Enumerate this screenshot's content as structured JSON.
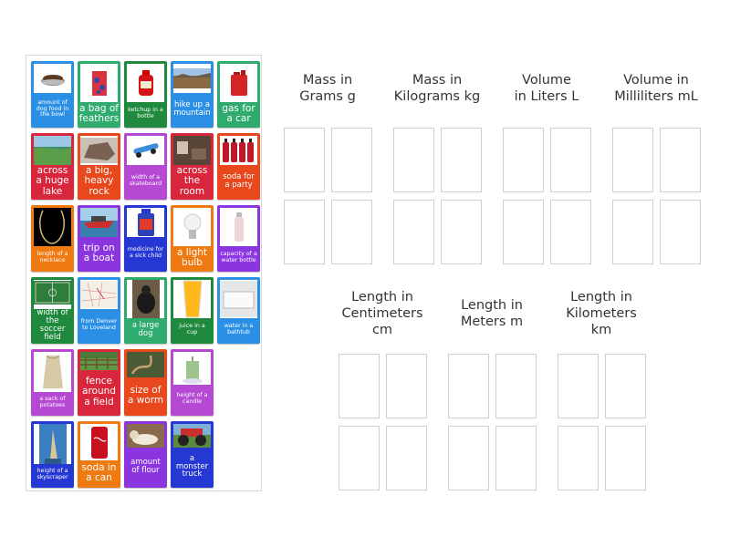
{
  "activity": {
    "type": "group-sort",
    "item_pool": [
      {
        "label": "amount of dog food in the bowl",
        "image": "dog-food-bowl",
        "color": "#2b8fe6"
      },
      {
        "label": "a bag of feathers",
        "image": "bag-of-feathers",
        "color": "#2fab6e"
      },
      {
        "label": "ketchup in a bottle",
        "image": "ketchup-bottle",
        "color": "#1f8a3e"
      },
      {
        "label": "hike up a mountain",
        "image": "mountain-landscape",
        "color": "#2b8fe6"
      },
      {
        "label": "gas for a car",
        "image": "gas-can",
        "color": "#2fab6e"
      },
      {
        "label": "across a huge lake",
        "image": "lake",
        "color": "#d9263c"
      },
      {
        "label": "a big, heavy rock",
        "image": "rock",
        "color": "#e8481c"
      },
      {
        "label": "width of a skateboard",
        "image": "skateboard",
        "color": "#b549d4"
      },
      {
        "label": "across the room",
        "image": "room",
        "color": "#d9263c"
      },
      {
        "label": "soda for a party",
        "image": "soda-bottles",
        "color": "#e8481c"
      },
      {
        "label": "length of a necklace",
        "image": "necklace",
        "color": "#f07a12"
      },
      {
        "label": "trip on a boat",
        "image": "boat",
        "color": "#8b35e0"
      },
      {
        "label": "medicine for a sick child",
        "image": "medicine-bottle",
        "color": "#2638d4"
      },
      {
        "label": "a light bulb",
        "image": "light-bulb",
        "color": "#f07a12"
      },
      {
        "label": "capacity of a water bottle",
        "image": "water-bottle",
        "color": "#8b35e0"
      },
      {
        "label": "width of the soccer field",
        "image": "soccer-field",
        "color": "#1f8a3e"
      },
      {
        "label": "from Denver to Loveland",
        "image": "map",
        "color": "#2b8fe6"
      },
      {
        "label": "a large dog",
        "image": "large-dog",
        "color": "#2fab6e"
      },
      {
        "label": "juice in a cup",
        "image": "juice-glass",
        "color": "#1f8a3e"
      },
      {
        "label": "water in a bathtub",
        "image": "bathtub",
        "color": "#2b8fe6"
      },
      {
        "label": "a sack of potatoes",
        "image": "potato-sack",
        "color": "#b549d4"
      },
      {
        "label": "fence around a field",
        "image": "fence",
        "color": "#d9263c"
      },
      {
        "label": "size of a worm",
        "image": "worm",
        "color": "#e8481c"
      },
      {
        "label": "height of a candle",
        "image": "candle",
        "color": "#b549d4"
      },
      {
        "label": "height of a skyscraper",
        "image": "skyscraper",
        "color": "#2638d4"
      },
      {
        "label": "soda in a can",
        "image": "soda-can",
        "color": "#f07a12"
      },
      {
        "label": "amount of flour",
        "image": "flour",
        "color": "#8b35e0"
      },
      {
        "label": "a monster truck",
        "image": "monster-truck",
        "color": "#2638d4"
      }
    ],
    "groups": [
      {
        "title": "Mass in Grams g",
        "lines": [
          "Mass in",
          "Grams g"
        ],
        "slots": 4
      },
      {
        "title": "Mass in Kilograms kg",
        "lines": [
          "Mass in",
          "Kilograms kg"
        ],
        "slots": 4
      },
      {
        "title": "Volume in Liters L",
        "lines": [
          "Volume",
          "in Liters L"
        ],
        "slots": 4
      },
      {
        "title": "Volume in Milliliters mL",
        "lines": [
          "Volume in",
          "Milliliters mL"
        ],
        "slots": 4
      },
      {
        "title": "Length in Centimeters cm",
        "lines": [
          "Length in",
          "Centimeters",
          "cm"
        ],
        "slots": 4
      },
      {
        "title": "Length in Meters m",
        "lines": [
          "Length in",
          "Meters m"
        ],
        "slots": 4
      },
      {
        "title": "Length in Kilometers km",
        "lines": [
          "Length in",
          "Kilometers",
          "km"
        ],
        "slots": 4
      }
    ]
  }
}
